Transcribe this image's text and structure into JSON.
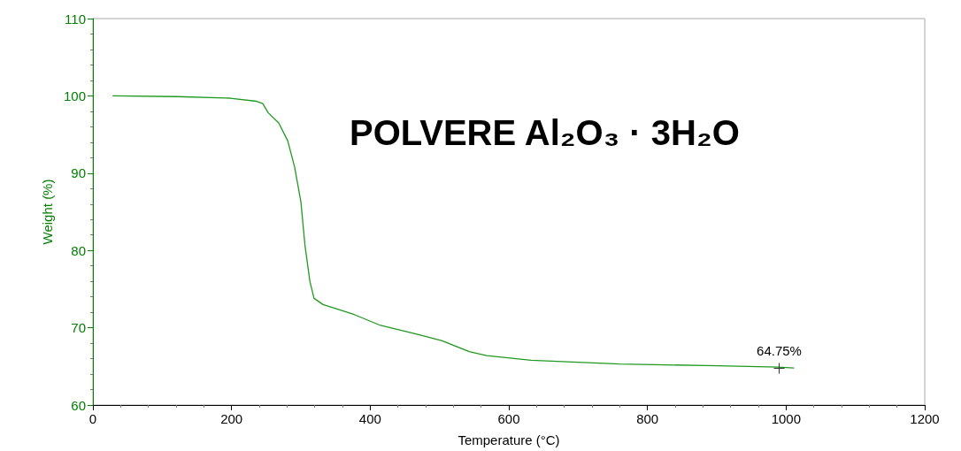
{
  "chart_data": {
    "type": "line",
    "title": "POLVERE Al₂O₃ · 3H₂O",
    "xlabel": "Temperature (°C)",
    "ylabel": "Weight (%)",
    "x": [
      29,
      121,
      198,
      236,
      245,
      253,
      268,
      281,
      291,
      300,
      306,
      313,
      319,
      332,
      377,
      415,
      466,
      504,
      543,
      568,
      632,
      760,
      887,
      989,
      1011
    ],
    "series": [
      {
        "color": "#1f9a1f",
        "values": [
          100.0,
          99.9,
          99.7,
          99.3,
          99.0,
          97.8,
          96.5,
          94.2,
          90.8,
          86.3,
          80.6,
          76.0,
          73.8,
          73.0,
          71.7,
          70.3,
          69.2,
          68.3,
          66.9,
          66.4,
          65.8,
          65.3,
          65.1,
          64.9,
          64.8
        ]
      }
    ],
    "xlim": [
      0,
      1200
    ],
    "xticks": [
      0,
      200,
      400,
      600,
      800,
      1000,
      1200
    ],
    "ylim": [
      60,
      110
    ],
    "yticks": [
      60,
      70,
      80,
      90,
      100,
      110
    ],
    "annotations": [
      {
        "text": "64.75%",
        "x": 990,
        "y": 64.75
      }
    ],
    "grid": false,
    "marker": "none",
    "line_style": "solid"
  }
}
